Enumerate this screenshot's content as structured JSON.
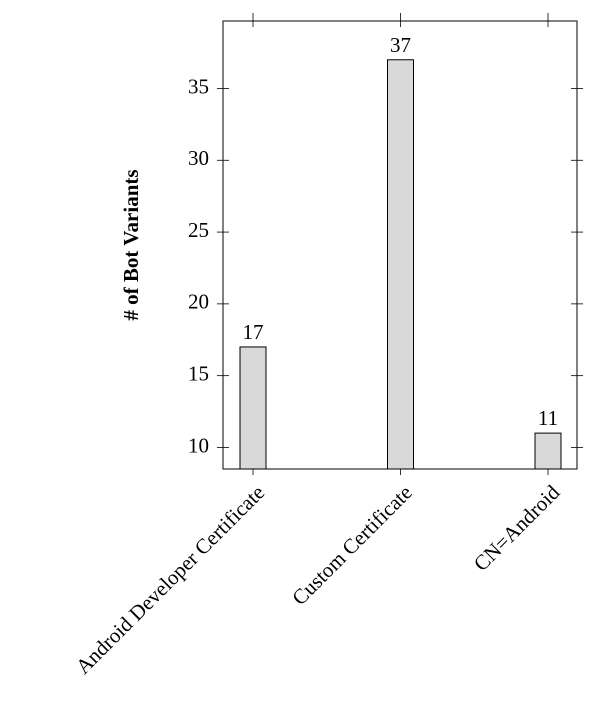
{
  "chart_data": {
    "type": "bar",
    "y_label": "# of Bot Variants",
    "categories": [
      "Android Developer Certificate",
      "Custom Certificate",
      "CN=Android"
    ],
    "values": [
      17,
      37,
      11
    ],
    "color": "#d9d9d9",
    "ylim": [
      8.5,
      39.7
    ],
    "yticks": [
      10,
      15,
      20,
      25,
      30,
      35
    ]
  }
}
